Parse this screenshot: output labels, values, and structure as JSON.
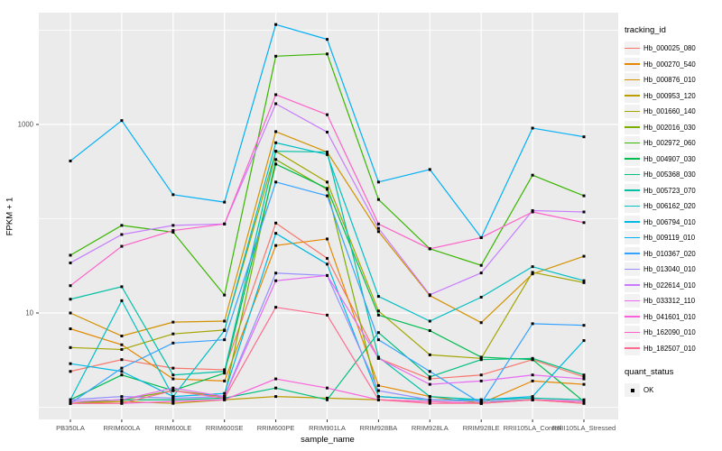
{
  "chart_data": {
    "type": "line",
    "title": "",
    "xlabel": "sample_name",
    "ylabel": "FPKM + 1",
    "y_scale": "log10",
    "legend_title": "tracking_id",
    "legend_position": "right",
    "grid": "on",
    "panel_bg": "#EBEBEB",
    "grid_color": "#FFFFFF",
    "tick_label_color": "#4D4D4D",
    "tick_mark_color": "#333333",
    "point_color": "#000000",
    "y_ticks": [
      {
        "label": "1000",
        "value": 1000
      },
      {
        "label": "10",
        "value": 10
      }
    ],
    "y_minor_values": [
      1,
      100,
      10000
    ],
    "ylim_log10": [
      -0.13,
      4.19
    ],
    "categories": [
      "PB350LA",
      "RRIM600LA",
      "RRIM600LE",
      "RRIM600SE",
      "RRIM600PE",
      "RRIM901LA",
      "RRIM928BA",
      "RRIM928LA",
      "RRIM928LE",
      "RRII105LA_Control",
      "RRII105LA_Stressed"
    ],
    "series": [
      {
        "name": "Hb_000025_080",
        "color": "#F8766D",
        "values": [
          2.4,
          3.2,
          2.6,
          2.5,
          90,
          38,
          3.3,
          2.0,
          2.2,
          3.2,
          2.1
        ]
      },
      {
        "name": "Hb_000270_540",
        "color": "#E58700",
        "values": [
          6.8,
          4.6,
          2.0,
          1.9,
          52,
          61,
          1.7,
          1.3,
          1.1,
          1.9,
          1.75
        ]
      },
      {
        "name": "Hb_000876_010",
        "color": "#D39200",
        "values": [
          10,
          5.7,
          8.0,
          8.2,
          840,
          510,
          73,
          15.3,
          7.9,
          26,
          40
        ]
      },
      {
        "name": "Hb_000953_120",
        "color": "#BC9D00",
        "values": [
          1.1,
          1.15,
          1.1,
          1.2,
          1.3,
          1.25,
          1.2,
          1.15,
          1.1,
          1.2,
          1.1
        ]
      },
      {
        "name": "Hb_001660_140",
        "color": "#A3A500",
        "values": [
          4.3,
          4.1,
          6.0,
          6.6,
          520,
          245,
          10.5,
          3.6,
          3.3,
          27,
          21
        ]
      },
      {
        "name": "Hb_002016_030",
        "color": "#7CAE00",
        "values": [
          1.1,
          1.2,
          1.5,
          1.3,
          425,
          205,
          1.3,
          1.2,
          1.15,
          1.2,
          1.15
        ]
      },
      {
        "name": "Hb_002972_060",
        "color": "#39B600",
        "values": [
          41,
          85,
          72,
          15.5,
          5300,
          5600,
          160,
          48,
          32,
          290,
          175
        ]
      },
      {
        "name": "Hb_004907_030",
        "color": "#00BB4E",
        "values": [
          1.2,
          2.2,
          1.5,
          2.3,
          380,
          210,
          9.5,
          6.5,
          3.4,
          3.2,
          1.15
        ]
      },
      {
        "name": "Hb_005368_030",
        "color": "#00BF7D",
        "values": [
          1.15,
          1.2,
          1.2,
          1.25,
          1.6,
          1.2,
          6.2,
          2.1,
          3.2,
          3.3,
          2.2
        ]
      },
      {
        "name": "Hb_005723_070",
        "color": "#00C1A3",
        "values": [
          14,
          19,
          2.2,
          2.4,
          520,
          510,
          3.4,
          1.3,
          1.2,
          1.25,
          1.2
        ]
      },
      {
        "name": "Hb_006162_020",
        "color": "#00BFC4",
        "values": [
          1.2,
          13.5,
          1.3,
          6.5,
          640,
          480,
          15,
          8.2,
          14.7,
          31,
          22
        ]
      },
      {
        "name": "Hb_006794_010",
        "color": "#00B9E3",
        "values": [
          2.9,
          2.4,
          1.3,
          1.4,
          70,
          33,
          1.3,
          1.2,
          1.2,
          1.3,
          5.1
        ]
      },
      {
        "name": "Hb_009119_010",
        "color": "#00B0F6",
        "values": [
          410,
          1100,
          180,
          150,
          11500,
          8000,
          245,
          333,
          63,
          915,
          740
        ]
      },
      {
        "name": "Hb_010367_020",
        "color": "#35A2FF",
        "values": [
          1.1,
          2.6,
          4.8,
          5.2,
          245,
          175,
          5.2,
          2.4,
          1.1,
          7.7,
          7.4
        ]
      },
      {
        "name": "Hb_013040_010",
        "color": "#9590FF",
        "values": [
          1.2,
          1.3,
          1.25,
          1.3,
          26.5,
          25,
          1.5,
          1.2,
          1.15,
          1.2,
          1.15
        ]
      },
      {
        "name": "Hb_022614_010",
        "color": "#C77CFF",
        "values": [
          34,
          68,
          85,
          88,
          1660,
          830,
          79,
          15.6,
          26.6,
          122,
          118
        ]
      },
      {
        "name": "Hb_033312_110",
        "color": "#E76BF3",
        "values": [
          1.15,
          1.2,
          1.6,
          1.3,
          22,
          25,
          3.3,
          1.75,
          1.9,
          2.2,
          2.0
        ]
      },
      {
        "name": "Hb_041601_010",
        "color": "#FA62DB",
        "values": [
          1.1,
          1.1,
          1.15,
          1.2,
          2.0,
          1.6,
          1.2,
          1.15,
          1.1,
          1.2,
          1.15
        ]
      },
      {
        "name": "Hb_162090_010",
        "color": "#FF61C8",
        "values": [
          19.5,
          51,
          75,
          88,
          2070,
          1270,
          88,
          48,
          63,
          118,
          91
        ]
      },
      {
        "name": "Hb_182507_010",
        "color": "#FF6C91",
        "values": [
          1.1,
          1.1,
          1.5,
          1.25,
          11.5,
          9.5,
          1.2,
          1.1,
          1.1,
          1.2,
          1.1
        ]
      }
    ],
    "quant_legend": {
      "title": "quant_status",
      "entries": [
        {
          "label": "OK",
          "marker": "filled-square",
          "color": "#000000"
        }
      ]
    }
  }
}
